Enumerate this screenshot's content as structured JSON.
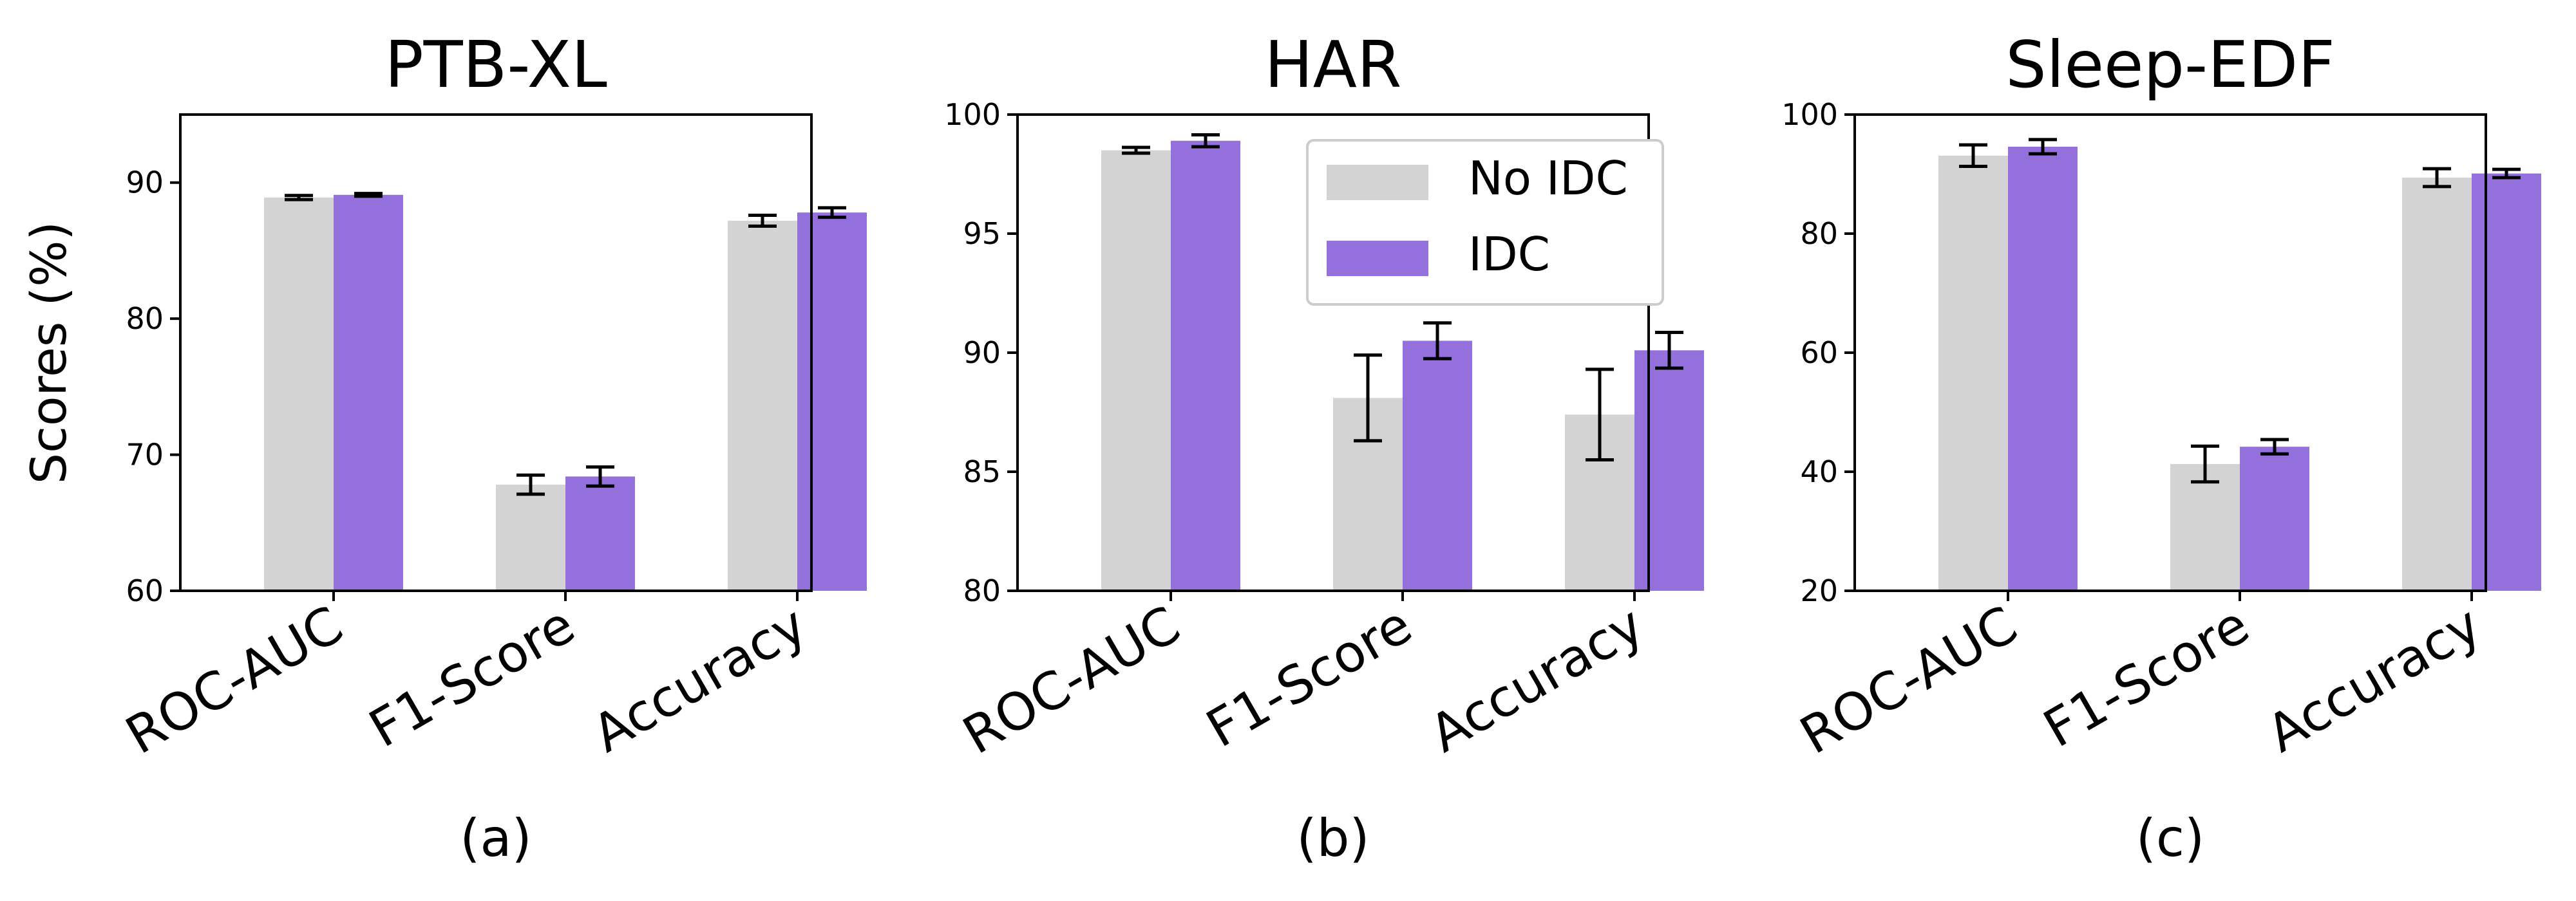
{
  "figure": {
    "ylabel": "Scores (%)",
    "legend": {
      "entries": [
        "No IDC",
        "IDC"
      ],
      "placement": "upper-right of panel (b)"
    },
    "colors": {
      "no_idc": "#d3d3d3",
      "idc": "#9370db"
    }
  },
  "chart_data": [
    {
      "type": "bar",
      "panel": "a",
      "title": "PTB-XL",
      "caption": "(a)",
      "categories": [
        "ROC-AUC",
        "F1-Score",
        "Accuracy"
      ],
      "ylim": [
        60,
        95
      ],
      "yticks": [
        60,
        70,
        80,
        90
      ],
      "series": [
        {
          "name": "No IDC",
          "values": [
            88.9,
            67.8,
            87.2
          ],
          "errors": [
            0.15,
            0.7,
            0.4
          ]
        },
        {
          "name": "IDC",
          "values": [
            89.1,
            68.4,
            87.8
          ],
          "errors": [
            0.1,
            0.7,
            0.35
          ]
        }
      ]
    },
    {
      "type": "bar",
      "panel": "b",
      "title": "HAR",
      "caption": "(b)",
      "categories": [
        "ROC-AUC",
        "F1-Score",
        "Accuracy"
      ],
      "ylim": [
        80,
        100
      ],
      "yticks": [
        80,
        85,
        90,
        95,
        100
      ],
      "series": [
        {
          "name": "No IDC",
          "values": [
            98.5,
            88.1,
            87.4
          ],
          "errors": [
            0.12,
            1.8,
            1.9
          ]
        },
        {
          "name": "IDC",
          "values": [
            98.9,
            90.5,
            90.1
          ],
          "errors": [
            0.25,
            0.75,
            0.75
          ]
        }
      ],
      "legend": true
    },
    {
      "type": "bar",
      "panel": "c",
      "title": "Sleep-EDF",
      "caption": "(c)",
      "categories": [
        "ROC-AUC",
        "F1-Score",
        "Accuracy"
      ],
      "ylim": [
        20,
        100
      ],
      "yticks": [
        20,
        40,
        60,
        80,
        100
      ],
      "series": [
        {
          "name": "No IDC",
          "values": [
            93.1,
            41.3,
            89.4
          ],
          "errors": [
            1.8,
            3.0,
            1.5
          ]
        },
        {
          "name": "IDC",
          "values": [
            94.6,
            44.2,
            90.1
          ],
          "errors": [
            1.2,
            1.2,
            0.7
          ]
        }
      ]
    }
  ]
}
